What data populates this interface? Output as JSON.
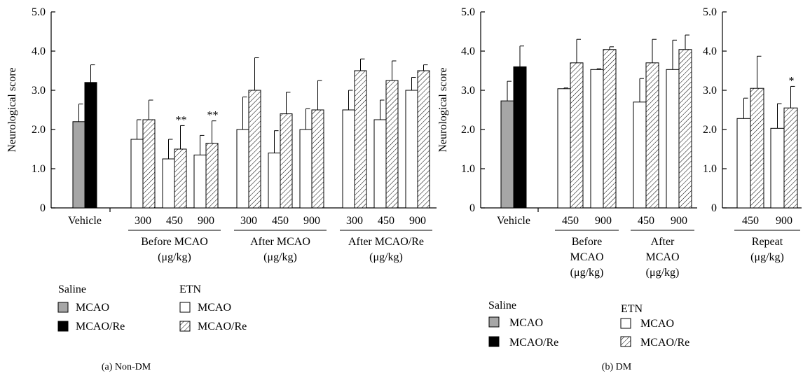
{
  "legend": {
    "saline_heading": "Saline",
    "etn_heading": "ETN",
    "entries": {
      "saline_mcao": "MCAO",
      "saline_mcao_re": "MCAO/Re",
      "etn_mcao": "MCAO",
      "etn_mcao_re": "MCAO/Re"
    }
  },
  "colors": {
    "saline_mcao": "#a6a6a6",
    "saline_mcao_re": "#000000",
    "etn_mcao": "#ffffff",
    "etn_mcao_re": "hatched"
  },
  "chart_data": [
    {
      "type": "bar",
      "caption": "(a) Non-DM",
      "ylabel": "Neurological score",
      "ylim": [
        0,
        5.0
      ],
      "yticks": [
        "0",
        "1.0",
        "2.0",
        "3.0",
        "4.0",
        "5.0"
      ],
      "groups": [
        {
          "label": "Vehicle",
          "bars": [
            {
              "series": "saline_mcao",
              "value": 2.2,
              "error": 0.45
            },
            {
              "series": "saline_mcao_re",
              "value": 3.2,
              "error": 0.45
            }
          ]
        },
        {
          "label": "300",
          "section": "before",
          "bars": [
            {
              "series": "etn_mcao",
              "value": 1.75,
              "error": 0.5
            },
            {
              "series": "etn_mcao_re",
              "value": 2.25,
              "error": 0.5
            }
          ]
        },
        {
          "label": "450",
          "section": "before",
          "bars": [
            {
              "series": "etn_mcao",
              "value": 1.25,
              "error": 0.5
            },
            {
              "series": "etn_mcao_re",
              "value": 1.5,
              "error": 0.6,
              "marker": "**"
            }
          ]
        },
        {
          "label": "900",
          "section": "before",
          "bars": [
            {
              "series": "etn_mcao",
              "value": 1.35,
              "error": 0.5
            },
            {
              "series": "etn_mcao_re",
              "value": 1.65,
              "error": 0.57,
              "marker": "**"
            }
          ]
        },
        {
          "label": "300",
          "section": "after",
          "bars": [
            {
              "series": "etn_mcao",
              "value": 2.0,
              "error": 0.83
            },
            {
              "series": "etn_mcao_re",
              "value": 3.0,
              "error": 0.83
            }
          ]
        },
        {
          "label": "450",
          "section": "after",
          "bars": [
            {
              "series": "etn_mcao",
              "value": 1.4,
              "error": 0.57
            },
            {
              "series": "etn_mcao_re",
              "value": 2.4,
              "error": 0.55
            }
          ]
        },
        {
          "label": "900",
          "section": "after",
          "bars": [
            {
              "series": "etn_mcao",
              "value": 2.0,
              "error": 0.53
            },
            {
              "series": "etn_mcao_re",
              "value": 2.5,
              "error": 0.75
            }
          ]
        },
        {
          "label": "300",
          "section": "afterre",
          "bars": [
            {
              "series": "etn_mcao",
              "value": 2.5,
              "error": 0.5
            },
            {
              "series": "etn_mcao_re",
              "value": 3.5,
              "error": 0.3
            }
          ]
        },
        {
          "label": "450",
          "section": "afterre",
          "bars": [
            {
              "series": "etn_mcao",
              "value": 2.25,
              "error": 0.5
            },
            {
              "series": "etn_mcao_re",
              "value": 3.25,
              "error": 0.5
            }
          ]
        },
        {
          "label": "900",
          "section": "afterre",
          "bars": [
            {
              "series": "etn_mcao",
              "value": 3.0,
              "error": 0.33
            },
            {
              "series": "etn_mcao_re",
              "value": 3.5,
              "error": 0.15
            }
          ]
        }
      ],
      "sections": [
        {
          "key": "before",
          "lines": [
            "Before MCAO",
            "(μg/kg)"
          ]
        },
        {
          "key": "after",
          "lines": [
            "After MCAO",
            "(μg/kg)"
          ]
        },
        {
          "key": "afterre",
          "lines": [
            "After MCAO/Re",
            "(μg/kg)"
          ]
        }
      ]
    },
    {
      "type": "bar",
      "caption": "(b) DM",
      "ylabel": "Neurological score",
      "ylim": [
        0,
        5.0
      ],
      "yticks": [
        "0",
        "1.0",
        "2.0",
        "3.0",
        "4.0",
        "5.0"
      ],
      "groups": [
        {
          "label": "Vehicle",
          "bars": [
            {
              "series": "saline_mcao",
              "value": 2.73,
              "error": 0.5
            },
            {
              "series": "saline_mcao_re",
              "value": 3.6,
              "error": 0.53
            }
          ]
        },
        {
          "label": "450",
          "section": "before",
          "bars": [
            {
              "series": "etn_mcao",
              "value": 3.04,
              "error": 0.02
            },
            {
              "series": "etn_mcao_re",
              "value": 3.7,
              "error": 0.6
            }
          ]
        },
        {
          "label": "900",
          "section": "before",
          "bars": [
            {
              "series": "etn_mcao",
              "value": 3.53,
              "error": 0.02
            },
            {
              "series": "etn_mcao_re",
              "value": 4.04,
              "error": 0.07
            }
          ]
        },
        {
          "label": "450",
          "section": "after",
          "bars": [
            {
              "series": "etn_mcao",
              "value": 2.7,
              "error": 0.6
            },
            {
              "series": "etn_mcao_re",
              "value": 3.7,
              "error": 0.6
            }
          ]
        },
        {
          "label": "900",
          "section": "after",
          "bars": [
            {
              "series": "etn_mcao",
              "value": 3.53,
              "error": 0.75
            },
            {
              "series": "etn_mcao_re",
              "value": 4.04,
              "error": 0.37
            }
          ]
        }
      ],
      "sections": [
        {
          "key": "before",
          "lines": [
            "Before",
            "MCAO",
            "(μg/kg)"
          ]
        },
        {
          "key": "after",
          "lines": [
            "After",
            "MCAO",
            "(μg/kg)"
          ]
        }
      ]
    },
    {
      "type": "bar",
      "caption": "",
      "ylabel": "",
      "ylim": [
        0,
        5.0
      ],
      "yticks": [
        "0",
        "1.0",
        "2.0",
        "3.0",
        "4.0",
        "5.0"
      ],
      "groups": [
        {
          "label": "450",
          "section": "repeat",
          "bars": [
            {
              "series": "etn_mcao",
              "value": 2.28,
              "error": 0.52
            },
            {
              "series": "etn_mcao_re",
              "value": 3.05,
              "error": 0.82
            }
          ]
        },
        {
          "label": "900",
          "section": "repeat",
          "bars": [
            {
              "series": "etn_mcao",
              "value": 2.03,
              "error": 0.63
            },
            {
              "series": "etn_mcao_re",
              "value": 2.55,
              "error": 0.55,
              "marker": "*"
            }
          ]
        }
      ],
      "sections": [
        {
          "key": "repeat",
          "lines": [
            "Repeat",
            "(μg/kg)"
          ]
        }
      ]
    }
  ]
}
